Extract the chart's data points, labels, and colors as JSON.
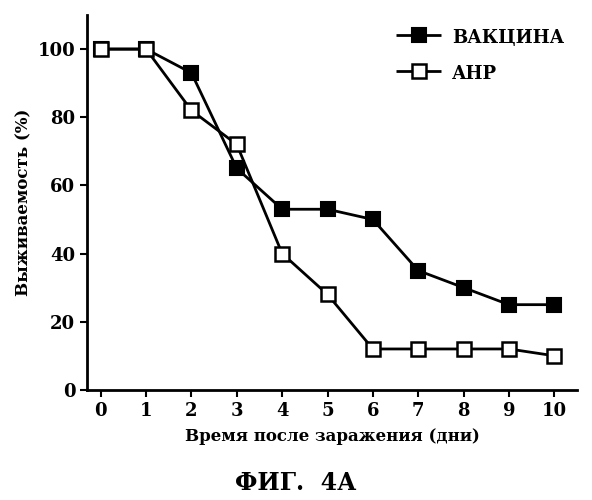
{
  "vaccine_x": [
    0,
    1,
    2,
    3,
    4,
    5,
    6,
    7,
    8,
    9,
    10
  ],
  "vaccine_y": [
    100,
    100,
    93,
    65,
    53,
    53,
    50,
    35,
    30,
    25,
    25
  ],
  "anp_x": [
    0,
    1,
    2,
    3,
    4,
    5,
    6,
    7,
    8,
    9,
    10
  ],
  "anp_y": [
    100,
    100,
    82,
    72,
    40,
    28,
    12,
    12,
    12,
    12,
    10
  ],
  "xlabel": "Время после заражения (дни)",
  "ylabel": "Выживаемость (%)",
  "title": "ФИГ.  4А",
  "legend_vaccine": "ВАКЦИНА",
  "legend_anp": "АНР",
  "xlim": [
    -0.3,
    10.5
  ],
  "ylim": [
    0,
    110
  ],
  "yticks": [
    0,
    20,
    40,
    60,
    80,
    100
  ],
  "xticks": [
    0,
    1,
    2,
    3,
    4,
    5,
    6,
    7,
    8,
    9,
    10
  ],
  "linewidth": 2.0,
  "markersize": 10
}
